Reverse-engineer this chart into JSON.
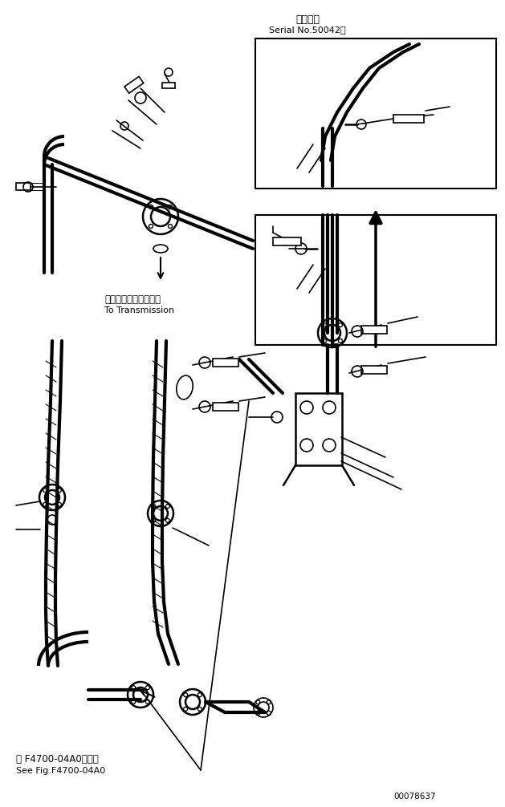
{
  "bg_color": "#ffffff",
  "line_color": "#000000",
  "fig_width": 6.29,
  "fig_height": 10.06,
  "dpi": 100,
  "title_jp": "適用号機",
  "title_en": "Serial No.50042～",
  "label_transmission_jp": "トランスミッションへ",
  "label_transmission_en": "To Transmission",
  "label_fig_jp": "第 F4700-04A0図参照",
  "label_fig_en": "See Fig.F4700-04A0",
  "part_number": "00078637"
}
